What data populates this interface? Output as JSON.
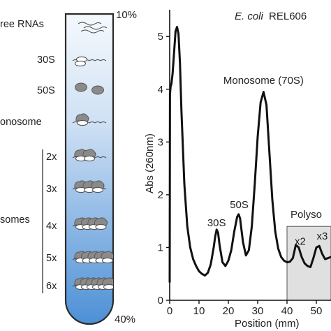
{
  "tube": {
    "top_percent": "10%",
    "bottom_percent": "40%",
    "bands": [
      {
        "key": "free",
        "label": "ree RNAs"
      },
      {
        "key": "s30",
        "label": "30S"
      },
      {
        "key": "s50",
        "label": "50S"
      },
      {
        "key": "mono",
        "label": "onosome"
      },
      {
        "key": "p2",
        "label": "2x"
      },
      {
        "key": "p3",
        "label": "3x"
      },
      {
        "key": "p4",
        "label": "4x"
      },
      {
        "key": "p5",
        "label": "5x"
      },
      {
        "key": "p6",
        "label": "6x"
      }
    ],
    "polysome_group_label": "somes",
    "colors": {
      "top": "#f5f9fd",
      "bottom": "#4d90d6",
      "ribosome": "#8a8a8a"
    }
  },
  "chart_data": {
    "type": "line",
    "title": "E. coli REL606",
    "title_italic_part": "E. coli",
    "title_rest": "REL606",
    "xlabel": "Position (mm)",
    "ylabel": "Abs (260nm)",
    "xlim": [
      0,
      55
    ],
    "ylim": [
      0,
      5.4
    ],
    "xticks": [
      0,
      10,
      20,
      30,
      40,
      50
    ],
    "xtick_labels": [
      "0",
      "10",
      "20",
      "30",
      "40",
      "50"
    ],
    "yticks": [
      0,
      1,
      2,
      3,
      4,
      5
    ],
    "ytick_labels": [
      "0",
      "1",
      "2",
      "3",
      "4",
      "5"
    ],
    "grid": false,
    "series": [
      {
        "x": [
          0.0,
          0.1,
          0.3,
          0.6,
          1.0,
          1.5,
          2.0,
          2.5,
          3.0,
          3.5,
          4.0,
          5.0,
          6.0,
          7.0,
          8.0,
          9.0,
          10.0,
          11.0,
          12.0,
          13.0,
          14.0,
          15.0,
          15.5,
          16.0,
          16.5,
          17.0,
          18.0,
          19.0,
          20.0,
          21.0,
          22.0,
          23.0,
          23.5,
          24.0,
          25.0,
          26.0,
          27.0,
          28.0,
          29.0,
          30.0,
          31.0,
          32.0,
          33.0,
          34.0,
          35.0,
          36.0,
          37.0,
          38.0,
          39.0,
          40.0,
          41.0,
          42.0,
          43.0,
          44.0,
          45.0,
          46.0,
          47.0,
          48.0,
          49.0,
          50.0,
          51.0,
          52.0,
          53.0,
          54.0,
          55.0
        ],
        "y": [
          0.35,
          3.9,
          4.05,
          4.1,
          4.3,
          4.7,
          5.1,
          5.18,
          5.05,
          4.5,
          3.6,
          2.2,
          1.4,
          1.0,
          0.78,
          0.65,
          0.55,
          0.5,
          0.47,
          0.52,
          0.68,
          1.0,
          1.2,
          1.34,
          1.28,
          1.05,
          0.72,
          0.65,
          0.75,
          0.95,
          1.3,
          1.58,
          1.63,
          1.55,
          1.1,
          0.85,
          0.95,
          1.4,
          2.2,
          3.1,
          3.75,
          3.95,
          3.7,
          2.8,
          1.9,
          1.3,
          0.98,
          0.82,
          0.75,
          0.72,
          0.73,
          0.8,
          1.05,
          1.0,
          0.82,
          0.7,
          0.65,
          0.63,
          0.8,
          1.0,
          1.03,
          0.88,
          0.78,
          0.8,
          0.82
        ]
      }
    ],
    "annotations": [
      {
        "text": "Monosome (70S)",
        "x": 32,
        "y": 4.1
      },
      {
        "text": "50S",
        "x": 23.7,
        "y": 1.75
      },
      {
        "text": "30S",
        "x": 16,
        "y": 1.4
      },
      {
        "text": "x2",
        "x": 44.5,
        "y": 1.05
      },
      {
        "text": "x3",
        "x": 52,
        "y": 1.15
      }
    ],
    "shaded_region": {
      "x_from": 40,
      "x_to": 55,
      "label": "Polyso",
      "color": "#e0e0e0"
    }
  }
}
